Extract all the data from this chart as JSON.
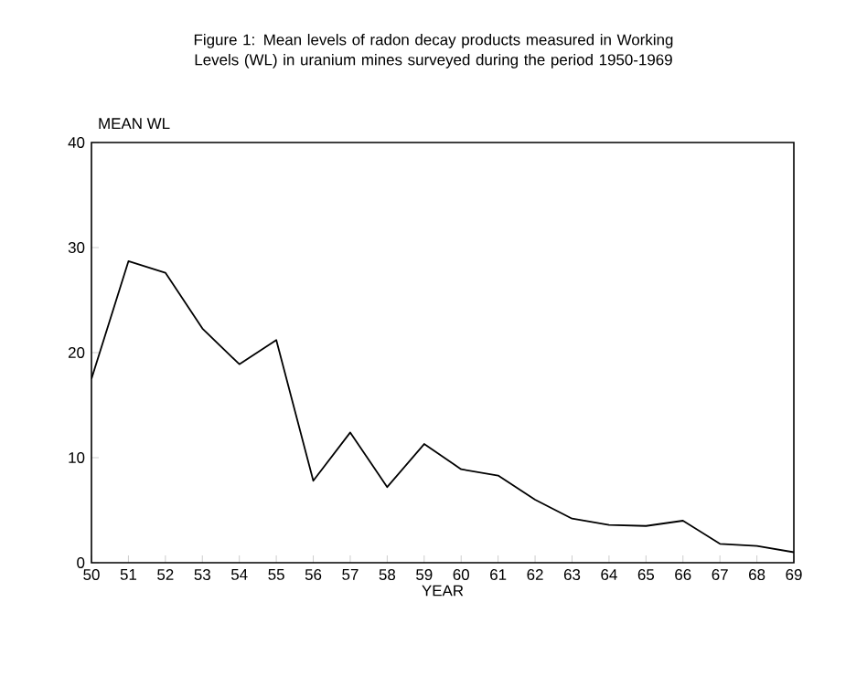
{
  "chart_data": {
    "type": "line",
    "title": "Figure 1:  Mean levels of radon decay products measured in Working Levels (WL) in uranium mines surveyed during the period 1950-1969",
    "xlabel": "YEAR",
    "ylabel": "MEAN WL",
    "x": [
      50,
      51,
      52,
      53,
      54,
      55,
      56,
      57,
      58,
      59,
      60,
      61,
      62,
      63,
      64,
      65,
      66,
      67,
      68,
      69
    ],
    "series": [
      {
        "color": "#000000",
        "values": [
          17.5,
          28.7,
          27.6,
          22.3,
          18.9,
          21.2,
          7.8,
          12.4,
          7.2,
          11.3,
          8.9,
          8.3,
          6.0,
          4.2,
          3.6,
          3.5,
          4.0,
          1.8,
          1.6,
          1.0
        ]
      }
    ],
    "xlim": [
      50,
      69
    ],
    "ylim": [
      0,
      40
    ],
    "xticks": [
      50,
      51,
      52,
      53,
      54,
      55,
      56,
      57,
      58,
      59,
      60,
      61,
      62,
      63,
      64,
      65,
      66,
      67,
      68,
      69
    ],
    "yticks": [
      0,
      10,
      20,
      30,
      40
    ],
    "grid": false,
    "legend": false,
    "marker": "none",
    "line_style": "solid"
  }
}
